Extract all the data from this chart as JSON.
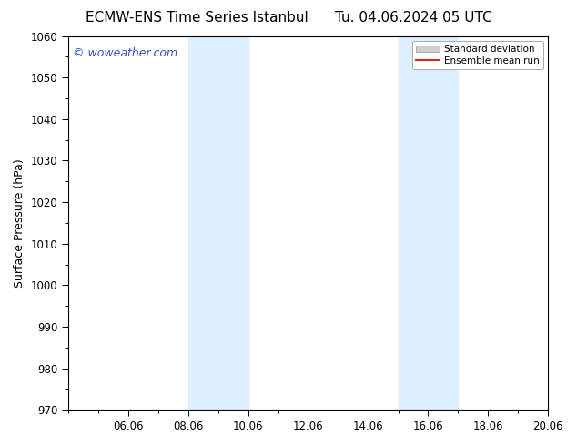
{
  "title": "ECMW-ENS Time Series Istanbul",
  "title2": "Tu. 04.06.2024 05 UTC",
  "ylabel": "Surface Pressure (hPa)",
  "ylim": [
    970,
    1060
  ],
  "yticks": [
    970,
    980,
    990,
    1000,
    1010,
    1020,
    1030,
    1040,
    1050,
    1060
  ],
  "xlim": [
    0,
    16
  ],
  "xtick_labels": [
    "06.06",
    "08.06",
    "10.06",
    "12.06",
    "14.06",
    "16.06",
    "18.06",
    "20.06"
  ],
  "xtick_positions": [
    2,
    4,
    6,
    8,
    10,
    12,
    14,
    16
  ],
  "shade_bands": [
    {
      "xmin": 4.0,
      "xmax": 6.0,
      "color": "#ddeeff"
    },
    {
      "xmin": 11.0,
      "xmax": 13.0,
      "color": "#ddeeff"
    }
  ],
  "watermark": "© woweather.com",
  "watermark_color": "#3355bb",
  "background_color": "#ffffff",
  "plot_bg_color": "#ffffff",
  "legend_std_color": "#d0d0d0",
  "legend_std_edge": "#aaaaaa",
  "legend_mean_color": "#dd2200",
  "title_fontsize": 11,
  "tick_fontsize": 8.5,
  "ylabel_fontsize": 9,
  "watermark_fontsize": 9
}
